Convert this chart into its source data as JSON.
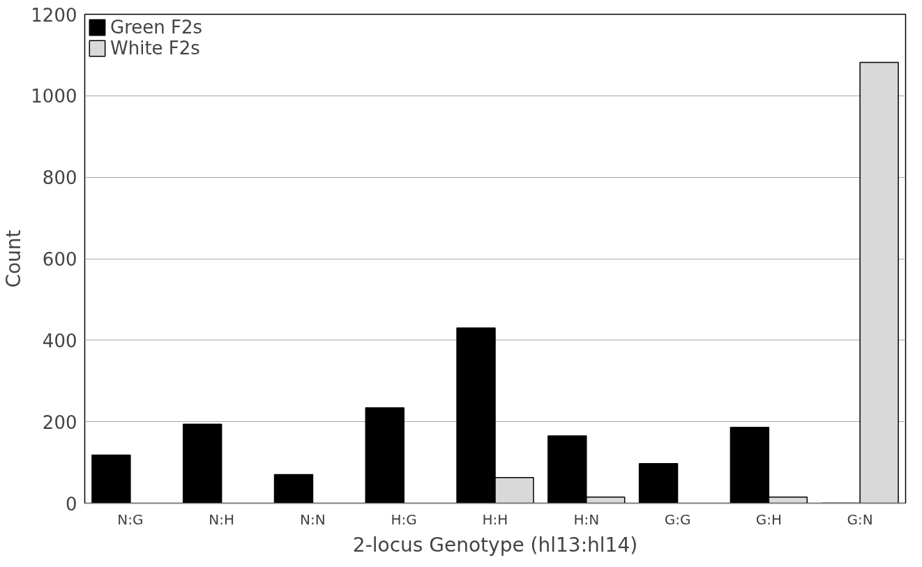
{
  "chart_data": {
    "type": "bar",
    "xlabel": "2-locus Genotype (hl13:hl14)",
    "ylabel": "Count",
    "categories": [
      "N:G",
      "N:H",
      "N:N",
      "H:G",
      "H:H",
      "H:N",
      "G:G",
      "G:H",
      "G:N"
    ],
    "series": [
      {
        "name": "Green F2s",
        "color": "#000000",
        "values": [
          118,
          194,
          70,
          234,
          430,
          165,
          97,
          186,
          0
        ]
      },
      {
        "name": "White F2s",
        "color": "#d9d9d9",
        "values": [
          null,
          null,
          null,
          null,
          63,
          15,
          null,
          15,
          1082
        ]
      }
    ],
    "ylim": [
      0,
      1200
    ],
    "yticks": [
      0,
      200,
      400,
      600,
      800,
      1000,
      1200
    ],
    "grid": "y",
    "legend": "top left"
  }
}
